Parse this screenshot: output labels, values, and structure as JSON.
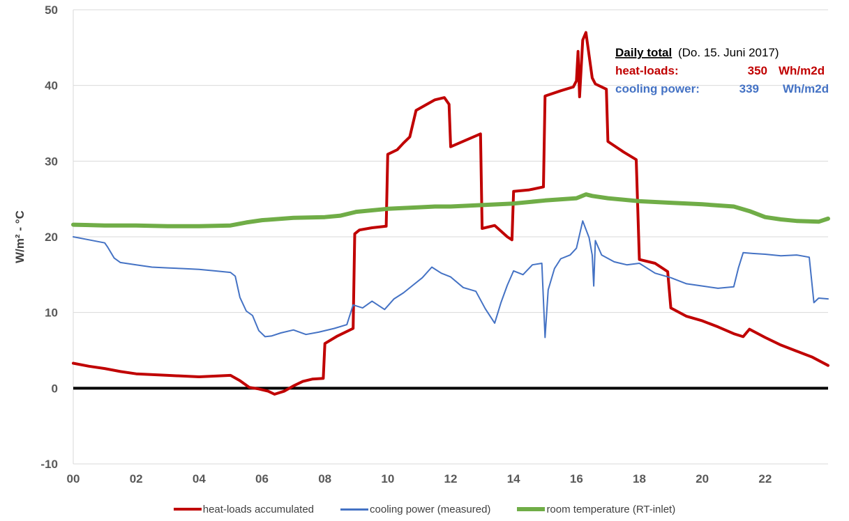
{
  "chart_data": {
    "type": "line",
    "ylabel": "W/m² - °C",
    "xlim": [
      0,
      24
    ],
    "ylim": [
      -10,
      50
    ],
    "x_ticks": [
      "00",
      "02",
      "04",
      "06",
      "08",
      "10",
      "12",
      "14",
      "16",
      "18",
      "20",
      "22"
    ],
    "y_ticks": [
      "-10",
      "0",
      "10",
      "20",
      "30",
      "40",
      "50"
    ],
    "grid": "horizontal",
    "legend_position": "bottom",
    "zero_line": 0,
    "series": [
      {
        "name": "heat-loads accumulated",
        "color": "#C00000",
        "x": [
          0,
          0.5,
          1,
          1.5,
          2,
          3,
          4,
          5,
          5.3,
          5.6,
          5.9,
          6.2,
          6.4,
          6.7,
          7.0,
          7.3,
          7.6,
          7.95,
          8.0,
          8.4,
          8.9,
          8.95,
          9.1,
          9.5,
          9.95,
          10.0,
          10.3,
          10.5,
          10.7,
          10.9,
          11.2,
          11.5,
          11.8,
          11.95,
          12.0,
          12.5,
          12.95,
          13.0,
          13.4,
          13.8,
          13.95,
          14.0,
          14.5,
          14.95,
          15.0,
          15.5,
          15.9,
          16.0,
          16.05,
          16.1,
          16.2,
          16.3,
          16.5,
          16.6,
          16.95,
          17.0,
          17.5,
          17.9,
          18.0,
          18.5,
          18.9,
          19.0,
          19.5,
          20,
          20.5,
          21,
          21.3,
          21.5,
          22,
          22.5,
          23,
          23.5,
          24
        ],
        "values": [
          3.3,
          2.9,
          2.6,
          2.2,
          1.9,
          1.7,
          1.5,
          1.7,
          1.0,
          0.1,
          -0.1,
          -0.4,
          -0.8,
          -0.4,
          0.3,
          0.9,
          1.2,
          1.3,
          5.9,
          6.9,
          7.9,
          20.4,
          20.9,
          21.2,
          21.4,
          30.9,
          31.5,
          32.4,
          33.2,
          36.7,
          37.4,
          38.1,
          38.4,
          37.5,
          31.9,
          32.8,
          33.6,
          21.1,
          21.5,
          20.0,
          19.6,
          26.0,
          26.2,
          26.6,
          38.6,
          39.3,
          39.8,
          40.6,
          44.5,
          38.5,
          46.0,
          47.0,
          41.0,
          40.2,
          39.5,
          32.6,
          31.2,
          30.2,
          17.0,
          16.5,
          15.4,
          10.6,
          9.5,
          8.9,
          8.1,
          7.2,
          6.8,
          7.8,
          6.7,
          5.7,
          4.9,
          4.1,
          3.0
        ]
      },
      {
        "name": "cooling power (measured)",
        "color": "#4472C4",
        "x": [
          0,
          0.5,
          1,
          1.1,
          1.3,
          1.5,
          2,
          2.5,
          3,
          3.5,
          4,
          4.5,
          5,
          5.15,
          5.3,
          5.5,
          5.7,
          5.9,
          6.1,
          6.3,
          6.6,
          7.0,
          7.4,
          7.8,
          8.3,
          8.7,
          8.9,
          9.2,
          9.5,
          9.9,
          10.2,
          10.5,
          10.8,
          11.1,
          11.4,
          11.7,
          12.0,
          12.4,
          12.8,
          13.1,
          13.4,
          13.6,
          13.8,
          14.0,
          14.3,
          14.6,
          14.9,
          15.0,
          15.1,
          15.3,
          15.5,
          15.8,
          16.0,
          16.2,
          16.4,
          16.5,
          16.55,
          16.6,
          16.8,
          17.2,
          17.6,
          18.0,
          18.5,
          19.0,
          19.5,
          20.0,
          20.5,
          21.0,
          21.15,
          21.3,
          21.6,
          22.0,
          22.5,
          23.0,
          23.4,
          23.55,
          23.7,
          24.0
        ],
        "values": [
          20.0,
          19.6,
          19.2,
          18.6,
          17.2,
          16.6,
          16.3,
          16.0,
          15.9,
          15.8,
          15.7,
          15.5,
          15.3,
          14.8,
          12.0,
          10.2,
          9.6,
          7.6,
          6.8,
          6.9,
          7.3,
          7.7,
          7.1,
          7.4,
          7.9,
          8.4,
          11.0,
          10.6,
          11.5,
          10.4,
          11.8,
          12.6,
          13.6,
          14.6,
          16.0,
          15.2,
          14.7,
          13.3,
          12.8,
          10.5,
          8.6,
          11.3,
          13.6,
          15.5,
          15.0,
          16.3,
          16.5,
          6.7,
          13.0,
          15.8,
          17.1,
          17.6,
          18.5,
          22.1,
          19.9,
          17.6,
          13.5,
          19.5,
          17.6,
          16.7,
          16.3,
          16.5,
          15.2,
          14.6,
          13.8,
          13.5,
          13.2,
          13.4,
          15.9,
          17.9,
          17.8,
          17.7,
          17.5,
          17.6,
          17.3,
          11.3,
          11.9,
          11.8
        ]
      },
      {
        "name": "room temperature (RT-inlet)",
        "color": "#70AD47",
        "x": [
          0,
          1,
          2,
          3,
          4,
          5,
          5.5,
          6,
          7,
          8,
          8.5,
          9,
          10,
          11,
          11.5,
          12,
          13,
          14,
          15,
          16,
          16.3,
          16.5,
          17,
          18,
          19,
          20,
          21,
          21.5,
          22,
          22.5,
          23,
          23.7,
          24
        ],
        "values": [
          21.6,
          21.5,
          21.5,
          21.4,
          21.4,
          21.5,
          21.9,
          22.2,
          22.5,
          22.6,
          22.8,
          23.3,
          23.7,
          23.9,
          24.0,
          24.0,
          24.2,
          24.4,
          24.8,
          25.1,
          25.6,
          25.4,
          25.1,
          24.7,
          24.5,
          24.3,
          24.0,
          23.4,
          22.6,
          22.3,
          22.1,
          22.0,
          22.4
        ]
      }
    ]
  },
  "annotation": {
    "title": "Daily total",
    "subtitle": "(Do. 15. Juni 2017)",
    "heat_label": "heat-loads:",
    "heat_value": "350",
    "heat_unit": "Wh/m2d",
    "cool_label": "cooling power:",
    "cool_value": "339",
    "cool_unit": "Wh/m2d",
    "heat_color": "#C00000",
    "cool_color": "#4472C4"
  }
}
